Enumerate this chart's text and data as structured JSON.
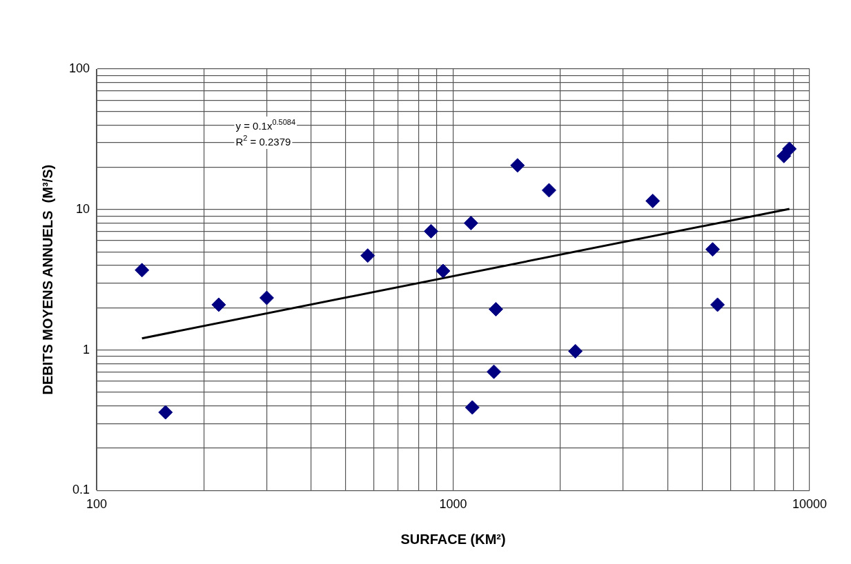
{
  "chart_data": {
    "type": "scatter",
    "xlabel": "SURFACE (KM²)",
    "ylabel": "DEBITS MOYENS ANNUELS  (M³/S)",
    "log": "xy",
    "grid": true,
    "legend": false,
    "marker": "diamond",
    "xlim": [
      100,
      10000
    ],
    "ylim": [
      0.1,
      100
    ],
    "xticks": [
      100,
      {
        "value": 200,
        "label": null
      },
      {
        "value": 300,
        "label": null
      },
      {
        "value": 400,
        "label": null
      },
      {
        "value": 500,
        "label": null
      },
      {
        "value": 600,
        "label": null
      },
      {
        "value": 700,
        "label": null
      },
      {
        "value": 800,
        "label": null
      },
      {
        "value": 900,
        "label": null
      },
      1000,
      {
        "value": 2000,
        "label": null
      },
      {
        "value": 3000,
        "label": null
      },
      {
        "value": 4000,
        "label": null
      },
      {
        "value": 5000,
        "label": null
      },
      {
        "value": 6000,
        "label": null
      },
      {
        "value": 7000,
        "label": null
      },
      {
        "value": 8000,
        "label": null
      },
      {
        "value": 9000,
        "label": null
      },
      10000
    ],
    "yticks": [
      0.1,
      {
        "value": 0.2,
        "label": null
      },
      {
        "value": 0.3,
        "label": null
      },
      {
        "value": 0.4,
        "label": null
      },
      {
        "value": 0.5,
        "label": null
      },
      {
        "value": 0.6,
        "label": null
      },
      {
        "value": 0.7,
        "label": null
      },
      {
        "value": 0.8,
        "label": null
      },
      {
        "value": 0.9,
        "label": null
      },
      1,
      {
        "value": 2,
        "label": null
      },
      {
        "value": 3,
        "label": null
      },
      {
        "value": 4,
        "label": null
      },
      {
        "value": 5,
        "label": null
      },
      {
        "value": 6,
        "label": null
      },
      {
        "value": 7,
        "label": null
      },
      {
        "value": 8,
        "label": null
      },
      {
        "value": 9,
        "label": null
      },
      10,
      {
        "value": 20,
        "label": null
      },
      {
        "value": 30,
        "label": null
      },
      {
        "value": 40,
        "label": null
      },
      {
        "value": 50,
        "label": null
      },
      {
        "value": 60,
        "label": null
      },
      {
        "value": 70,
        "label": null
      },
      {
        "value": 80,
        "label": null
      },
      {
        "value": 90,
        "label": null
      },
      100
    ],
    "annotations": [
      "y = 0.1x$^{0.5084}$",
      "R$^{2}$ = 0.2379"
    ],
    "series": [
      {
        "type": "scatter",
        "color": "#000080",
        "x": [
          134,
          156,
          220,
          300,
          576,
          867,
          937,
          1122,
          1132,
          1301,
          1318,
          1516,
          1858,
          2203,
          3631,
          5346,
          5517,
          8472,
          8776
        ],
        "values": [
          3.7,
          0.36,
          2.1,
          2.35,
          4.7,
          7.0,
          3.65,
          8.0,
          0.39,
          0.7,
          1.95,
          20.6,
          13.7,
          0.98,
          11.5,
          5.2,
          2.1,
          24,
          27
        ]
      },
      {
        "type": "line",
        "color": "#000000",
        "marker": "none",
        "x": [
          134,
          8776
        ],
        "values": [
          1.21,
          10.1
        ]
      }
    ]
  }
}
